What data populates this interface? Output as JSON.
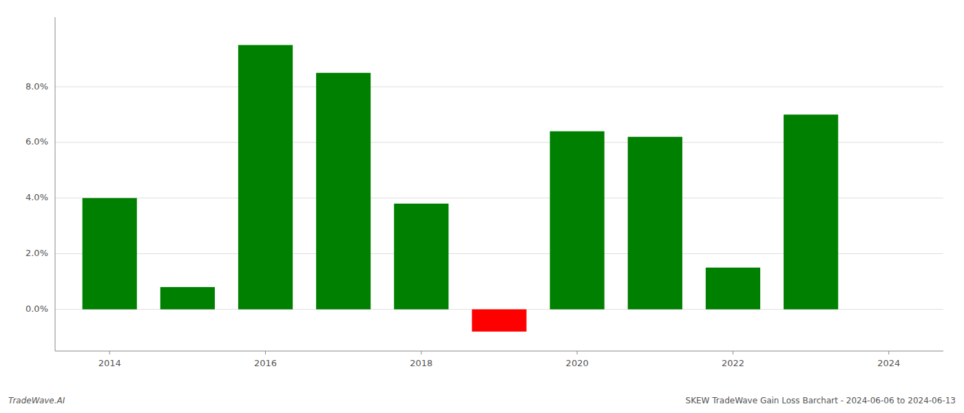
{
  "chart_data": {
    "type": "bar",
    "title": "SKEW TradeWave Gain Loss Barchart - 2024-06-06 to 2024-06-13",
    "annotations": [
      "TradeWave.AI"
    ],
    "x": [
      2014,
      2015,
      2016,
      2017,
      2018,
      2019,
      2020,
      2021,
      2022,
      2023
    ],
    "values": [
      0.04,
      0.008,
      0.095,
      0.085,
      0.038,
      -0.008,
      0.064,
      0.062,
      0.015,
      0.07
    ],
    "colors": [
      "#008000",
      "#008000",
      "#008000",
      "#008000",
      "#008000",
      "#ff0000",
      "#008000",
      "#008000",
      "#008000",
      "#008000"
    ],
    "xlim": [
      2013.3,
      2024.7
    ],
    "xticks": [
      2014,
      2016,
      2018,
      2020,
      2022,
      2024
    ],
    "ylim": [
      -0.015,
      0.105
    ],
    "yticks": [
      {
        "value": 0.0,
        "label": "0.0%"
      },
      {
        "value": 0.02,
        "label": "2.0%"
      },
      {
        "value": 0.04,
        "label": "4.0%"
      },
      {
        "value": 0.06,
        "label": "6.0%"
      },
      {
        "value": 0.08,
        "label": "8.0%"
      }
    ],
    "grid": true
  }
}
